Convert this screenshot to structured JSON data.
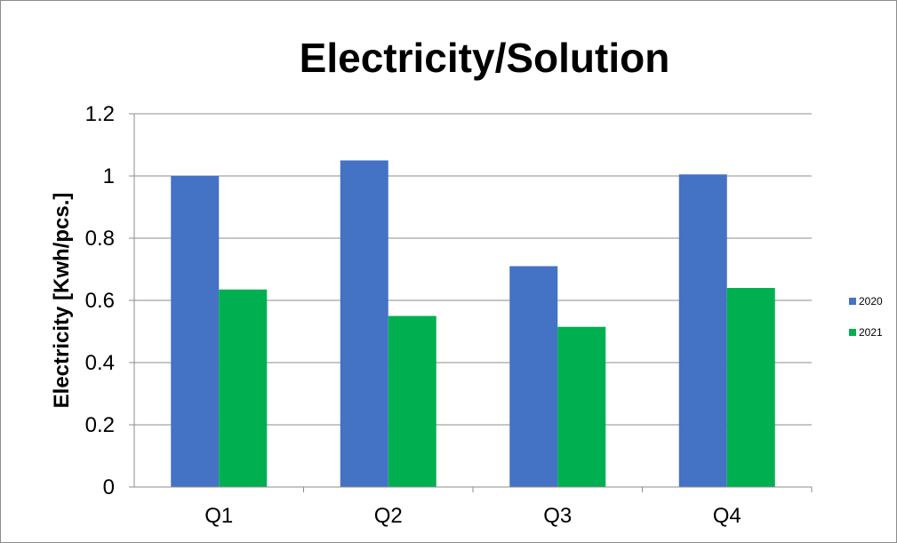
{
  "chart_data": {
    "type": "bar",
    "title": "Electricity/Solution",
    "xlabel": "",
    "ylabel": "Electricity [Kwh/pcs.]",
    "categories": [
      "Q1",
      "Q2",
      "Q3",
      "Q4"
    ],
    "series": [
      {
        "name": "2020",
        "values": [
          1.0,
          1.05,
          0.71,
          1.005
        ],
        "color": "#4472C4"
      },
      {
        "name": "2021",
        "values": [
          0.635,
          0.55,
          0.515,
          0.64
        ],
        "color": "#00B050"
      }
    ],
    "ylim": [
      0,
      1.2
    ],
    "yticks": [
      "0",
      "0.2",
      "0.4",
      "0.6",
      "0.8",
      "1",
      "1.2"
    ],
    "grid": true,
    "legend_position": "right"
  }
}
